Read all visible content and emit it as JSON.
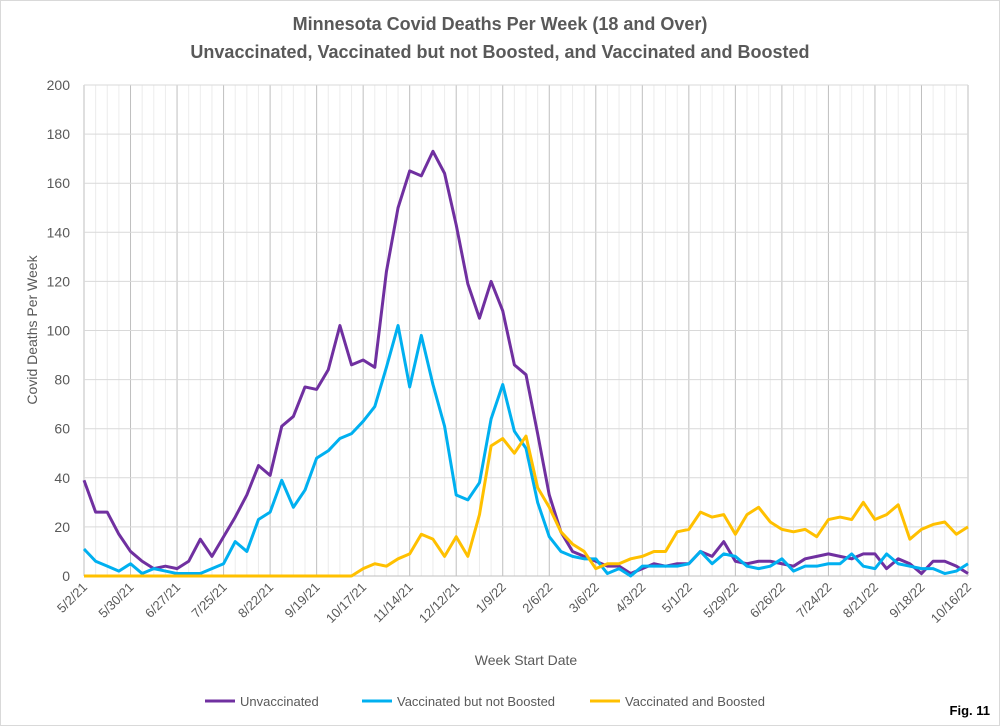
{
  "chart_data": {
    "type": "line",
    "title": "Minnesota Covid Deaths Per Week (18 and Over)",
    "subtitle": "Unvaccinated, Vaccinated but not Boosted, and Vaccinated and Boosted",
    "x_label": "Week Start Date",
    "y_label": "Covid Deaths Per Week",
    "annotation": "Fig. 11",
    "categories": [
      "5/2/21",
      null,
      null,
      null,
      "5/30/21",
      null,
      null,
      null,
      "6/27/21",
      null,
      null,
      null,
      "7/25/21",
      null,
      null,
      null,
      "8/22/21",
      null,
      null,
      null,
      "9/19/21",
      null,
      null,
      null,
      "10/17/21",
      null,
      null,
      null,
      "11/14/21",
      null,
      null,
      null,
      "12/12/21",
      null,
      null,
      null,
      "1/9/22",
      null,
      null,
      null,
      "2/6/22",
      null,
      null,
      null,
      "3/6/22",
      null,
      null,
      null,
      "4/3/22",
      null,
      null,
      null,
      "5/1/22",
      null,
      null,
      null,
      "5/29/22",
      null,
      null,
      null,
      "6/26/22",
      null,
      null,
      null,
      "7/24/22",
      null,
      null,
      null,
      "8/21/22",
      null,
      null,
      null,
      "9/18/22",
      null,
      null,
      null,
      "10/16/22"
    ],
    "series": [
      {
        "name": "Unvaccinated",
        "color": "#7030a0",
        "values": [
          39,
          26,
          26,
          17,
          10,
          6,
          3,
          4,
          3,
          6,
          15,
          8,
          16,
          24,
          33,
          45,
          41,
          61,
          65,
          77,
          76,
          84,
          102,
          86,
          88,
          85,
          124,
          150,
          165,
          163,
          173,
          164,
          143,
          119,
          105,
          120,
          108,
          86,
          82,
          58,
          33,
          18,
          10,
          8,
          6,
          4,
          4,
          1,
          3,
          5,
          4,
          5,
          5,
          10,
          8,
          14,
          6,
          5,
          6,
          6,
          5,
          4,
          7,
          8,
          9,
          8,
          7,
          9,
          9,
          3,
          7,
          5,
          1,
          6,
          6,
          4,
          1
        ]
      },
      {
        "name": "Vaccinated but not Boosted",
        "color": "#00b0f0",
        "values": [
          11,
          6,
          4,
          2,
          5,
          1,
          3,
          2,
          1,
          1,
          1,
          3,
          5,
          14,
          10,
          23,
          26,
          39,
          28,
          35,
          48,
          51,
          56,
          58,
          63,
          69,
          85,
          102,
          77,
          98,
          78,
          61,
          33,
          31,
          38,
          64,
          78,
          59,
          52,
          30,
          16,
          10,
          8,
          7,
          7,
          1,
          3,
          0,
          4,
          4,
          4,
          4,
          5,
          10,
          5,
          9,
          8,
          4,
          3,
          4,
          7,
          2,
          4,
          4,
          5,
          5,
          9,
          4,
          3,
          9,
          5,
          4,
          3,
          3,
          1,
          2,
          5
        ]
      },
      {
        "name": "Vaccinated and Boosted",
        "color": "#ffc000",
        "values": [
          0,
          0,
          0,
          0,
          0,
          0,
          0,
          0,
          0,
          0,
          0,
          0,
          0,
          0,
          0,
          0,
          0,
          0,
          0,
          0,
          0,
          0,
          0,
          0,
          3,
          5,
          4,
          7,
          9,
          17,
          15,
          8,
          16,
          8,
          25,
          53,
          56,
          50,
          57,
          36,
          28,
          18,
          13,
          10,
          3,
          5,
          5,
          7,
          8,
          10,
          10,
          18,
          19,
          26,
          24,
          25,
          17,
          25,
          28,
          22,
          19,
          18,
          19,
          16,
          23,
          24,
          23,
          30,
          23,
          25,
          29,
          15,
          19,
          21,
          22,
          17,
          20
        ]
      }
    ],
    "ylim": [
      0,
      200
    ],
    "yticks": [
      0,
      20,
      40,
      60,
      80,
      100,
      120,
      140,
      160,
      180,
      200
    ],
    "grid": true,
    "legend": "bottom"
  }
}
